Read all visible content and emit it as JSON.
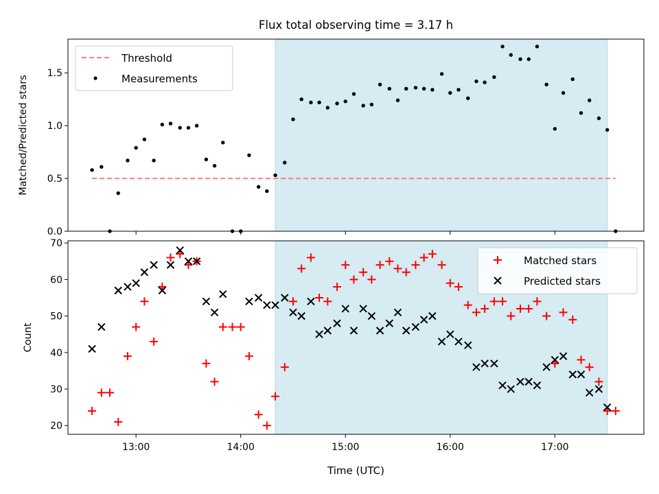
{
  "chart_data": [
    {
      "type": "scatter",
      "title": "Flux total observing time = 3.17 h",
      "xlabel": "",
      "ylabel": "Matched/Predicted stars",
      "xlim": [
        12.35,
        17.85
      ],
      "ylim": [
        0,
        1.82
      ],
      "yticks": [
        0.0,
        0.5,
        1.0,
        1.5
      ],
      "ytick_labels": [
        "0.0",
        "0.5",
        "1.0",
        "1.5"
      ],
      "xticks": [
        13,
        14,
        15,
        16,
        17
      ],
      "shaded_span": [
        14.33,
        17.5
      ],
      "shaded_color": "#add8e6",
      "threshold": {
        "name": "Threshold",
        "value": 0.5,
        "x_range": [
          12.58,
          17.58
        ],
        "color": "#ff7f7f"
      },
      "legend": [
        {
          "label": "Threshold",
          "style": "dash",
          "color": "#ff7f7f"
        },
        {
          "label": "Measurements",
          "style": "dot",
          "color": "#000000"
        }
      ],
      "series": [
        {
          "name": "Measurements",
          "color": "#000000",
          "x": [
            12.58,
            12.67,
            12.75,
            12.83,
            12.92,
            13.0,
            13.08,
            13.17,
            13.25,
            13.33,
            13.42,
            13.5,
            13.58,
            13.67,
            13.75,
            13.83,
            13.92,
            14.0,
            14.08,
            14.17,
            14.25,
            14.33,
            14.42,
            14.5,
            14.58,
            14.67,
            14.75,
            14.83,
            14.92,
            15.0,
            15.08,
            15.17,
            15.25,
            15.33,
            15.42,
            15.5,
            15.58,
            15.67,
            15.75,
            15.83,
            15.92,
            16.0,
            16.08,
            16.17,
            16.25,
            16.33,
            16.42,
            16.5,
            16.58,
            16.67,
            16.75,
            16.83,
            16.92,
            17.0,
            17.08,
            17.17,
            17.25,
            17.33,
            17.42,
            17.5,
            17.58
          ],
          "y": [
            0.58,
            0.61,
            0.0,
            0.36,
            0.67,
            0.79,
            0.87,
            0.67,
            1.01,
            1.02,
            0.98,
            0.98,
            1.0,
            0.68,
            0.62,
            0.84,
            0.0,
            0.0,
            0.72,
            0.42,
            0.38,
            0.53,
            0.65,
            1.06,
            1.25,
            1.22,
            1.22,
            1.17,
            1.21,
            1.23,
            1.3,
            1.19,
            1.2,
            1.39,
            1.35,
            1.24,
            1.35,
            1.36,
            1.35,
            1.34,
            1.49,
            1.31,
            1.34,
            1.26,
            1.42,
            1.41,
            1.46,
            1.75,
            1.67,
            1.63,
            1.63,
            1.75,
            1.39,
            0.97,
            1.31,
            1.44,
            1.12,
            1.24,
            1.07,
            0.96,
            0.0
          ]
        }
      ]
    },
    {
      "type": "scatter",
      "title": "",
      "xlabel": "Time (UTC)",
      "ylabel": "Count",
      "xlim": [
        12.35,
        17.85
      ],
      "ylim": [
        17.6,
        70.6
      ],
      "yticks": [
        20,
        30,
        40,
        50,
        60,
        70
      ],
      "ytick_labels": [
        "20",
        "30",
        "40",
        "50",
        "60",
        "70"
      ],
      "xticks": [
        13,
        14,
        15,
        16,
        17
      ],
      "xtick_labels": [
        "13:00",
        "14:00",
        "15:00",
        "16:00",
        "17:00"
      ],
      "shaded_span": [
        14.33,
        17.5
      ],
      "shaded_color": "#add8e6",
      "legend": [
        {
          "label": "Matched stars",
          "style": "plus",
          "color": "#ff0000"
        },
        {
          "label": "Predicted stars",
          "style": "x",
          "color": "#000000"
        }
      ],
      "series": [
        {
          "name": "Matched stars",
          "color": "#ff0000",
          "marker": "plus",
          "x": [
            12.58,
            12.67,
            12.75,
            12.83,
            12.92,
            13.0,
            13.08,
            13.17,
            13.25,
            13.33,
            13.42,
            13.5,
            13.58,
            13.67,
            13.75,
            13.83,
            13.92,
            14.0,
            14.08,
            14.17,
            14.25,
            14.33,
            14.42,
            14.5,
            14.58,
            14.67,
            14.75,
            14.83,
            14.92,
            15.0,
            15.08,
            15.17,
            15.25,
            15.33,
            15.42,
            15.5,
            15.58,
            15.67,
            15.75,
            15.83,
            15.92,
            16.0,
            16.08,
            16.17,
            16.25,
            16.33,
            16.42,
            16.5,
            16.58,
            16.67,
            16.75,
            16.83,
            16.92,
            17.0,
            17.08,
            17.17,
            17.25,
            17.33,
            17.42,
            17.5,
            17.58
          ],
          "y": [
            24,
            29,
            29,
            21,
            39,
            47,
            54,
            43,
            58,
            66,
            67,
            64,
            65,
            37,
            32,
            47,
            47,
            47,
            39,
            23,
            20,
            28,
            36,
            54,
            63,
            66,
            55,
            54,
            58,
            64,
            60,
            62,
            60,
            64,
            65,
            63,
            62,
            64,
            66,
            67,
            64,
            59,
            58,
            53,
            51,
            52,
            54,
            54,
            50,
            52,
            52,
            54,
            50,
            37,
            51,
            49,
            38,
            36,
            32,
            24,
            24
          ]
        },
        {
          "name": "Predicted stars",
          "color": "#000000",
          "marker": "x",
          "x": [
            12.58,
            12.67,
            12.83,
            12.92,
            13.0,
            13.08,
            13.17,
            13.25,
            13.33,
            13.42,
            13.5,
            13.58,
            13.67,
            13.75,
            13.83,
            14.08,
            14.17,
            14.25,
            14.33,
            14.42,
            14.5,
            14.58,
            14.67,
            14.75,
            14.83,
            14.92,
            15.0,
            15.08,
            15.17,
            15.25,
            15.33,
            15.42,
            15.5,
            15.58,
            15.67,
            15.75,
            15.83,
            15.92,
            16.0,
            16.08,
            16.17,
            16.25,
            16.33,
            16.42,
            16.5,
            16.58,
            16.67,
            16.75,
            16.83,
            16.92,
            17.0,
            17.08,
            17.17,
            17.25,
            17.33,
            17.42,
            17.5
          ],
          "y": [
            41,
            47,
            57,
            58,
            59,
            62,
            64,
            57,
            64,
            68,
            65,
            65,
            54,
            51,
            56,
            54,
            55,
            53,
            53,
            55,
            51,
            50,
            54,
            45,
            46,
            48,
            52,
            46,
            52,
            50,
            46,
            48,
            51,
            46,
            47,
            49,
            50,
            43,
            45,
            43,
            42,
            36,
            37,
            37,
            31,
            30,
            32,
            32,
            31,
            36,
            38,
            39,
            34,
            34,
            29,
            30,
            25
          ]
        }
      ]
    }
  ]
}
